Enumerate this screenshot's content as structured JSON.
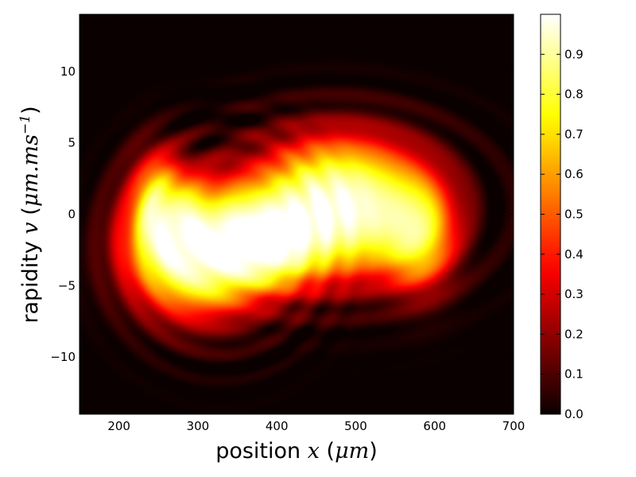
{
  "chart_data": {
    "type": "heatmap",
    "title": "",
    "xlabel": {
      "prefix": "position ",
      "var": "x",
      "unit_open": " (",
      "unit": "μm",
      "unit_close": ")"
    },
    "ylabel": {
      "prefix": "rapidity ",
      "var": "v",
      "unit_open": " (",
      "unit": "μm.ms",
      "exp": "−1",
      "unit_close": ")"
    },
    "xlim": [
      150,
      700
    ],
    "ylim": [
      -14,
      14
    ],
    "xticks": [
      200,
      300,
      400,
      500,
      600,
      700
    ],
    "xtick_labels": [
      "200",
      "300",
      "400",
      "500",
      "600",
      "700"
    ],
    "yticks": [
      10,
      5,
      0,
      -5,
      -10
    ],
    "ytick_labels": [
      "10",
      "5",
      "0",
      "−5",
      "−10"
    ],
    "colorbar": {
      "colormap": "hot",
      "range": [
        0,
        1
      ],
      "ticks": [
        0.0,
        0.1,
        0.2,
        0.3,
        0.4,
        0.5,
        0.6,
        0.7,
        0.8,
        0.9
      ],
      "tick_labels": [
        "0.0",
        "0.1",
        "0.2",
        "0.3",
        "0.4",
        "0.5",
        "0.6",
        "0.7",
        "0.8",
        "0.9"
      ]
    },
    "grid": false,
    "description_components": [
      {
        "x": 300,
        "y": -2.5,
        "sx": 55,
        "sy": 2.8,
        "amp": 1.0
      },
      {
        "x": 480,
        "y": 0.5,
        "sx": 70,
        "sy": 3.0,
        "amp": 1.0
      },
      {
        "x": 390,
        "y": -2.0,
        "sx": 40,
        "sy": 2.0,
        "amp": 0.7
      },
      {
        "x": 250,
        "y": 0.5,
        "sx": 25,
        "sy": 2.5,
        "amp": 0.5
      },
      {
        "x": 580,
        "y": -1.5,
        "sx": 30,
        "sy": 2.5,
        "amp": 0.5
      }
    ]
  }
}
